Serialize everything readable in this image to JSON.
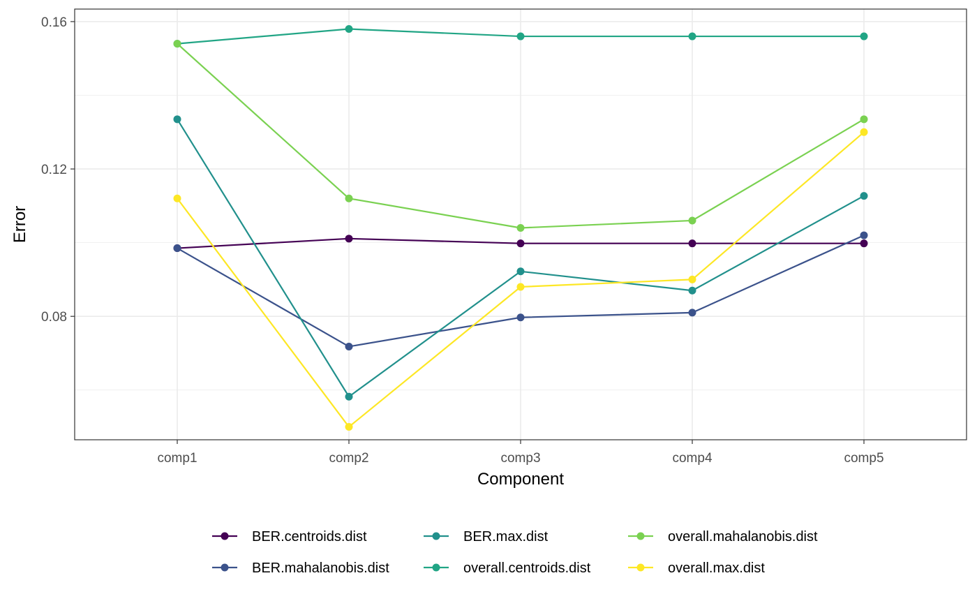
{
  "chart_data": {
    "type": "line",
    "title": "",
    "xlabel": "Component",
    "ylabel": "Error",
    "categories": [
      "comp1",
      "comp2",
      "comp3",
      "comp4",
      "comp5"
    ],
    "ylim": [
      0.0465,
      0.1634
    ],
    "yticks": [
      0.08,
      0.12,
      0.16
    ],
    "ytick_labels": [
      "0.08",
      "0.12",
      "0.16"
    ],
    "grid": true,
    "legend_position": "bottom",
    "series": [
      {
        "name": "BER.centroids.dist",
        "color": "#440154",
        "values": [
          0.0985,
          0.1011,
          0.0998,
          0.0998,
          0.0998
        ]
      },
      {
        "name": "BER.mahalanobis.dist",
        "color": "#3b528b",
        "values": [
          0.0985,
          0.0718,
          0.0797,
          0.081,
          0.102
        ]
      },
      {
        "name": "BER.max.dist",
        "color": "#21908c",
        "values": [
          0.1335,
          0.0582,
          0.0922,
          0.087,
          0.1127
        ]
      },
      {
        "name": "overall.centroids.dist",
        "color": "#21a585",
        "values": [
          0.154,
          0.158,
          0.156,
          0.156,
          0.156
        ]
      },
      {
        "name": "overall.mahalanobis.dist",
        "color": "#7ad151",
        "values": [
          0.154,
          0.112,
          0.104,
          0.106,
          0.1335
        ]
      },
      {
        "name": "overall.max.dist",
        "color": "#fde725",
        "values": [
          0.112,
          0.05,
          0.088,
          0.09,
          0.13
        ]
      }
    ]
  }
}
